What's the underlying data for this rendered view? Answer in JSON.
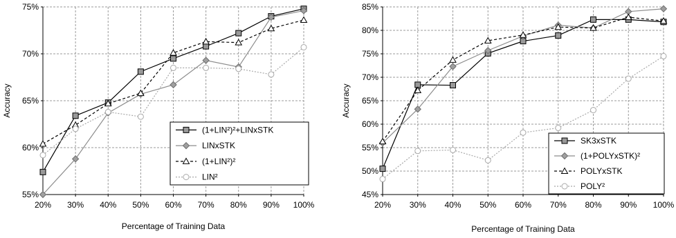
{
  "chart_data": [
    {
      "type": "line",
      "xlabel": "Percentage of Training Data",
      "ylabel": "Accuracy",
      "categories": [
        "20%",
        "30%",
        "40%",
        "50%",
        "60%",
        "70%",
        "80%",
        "90%",
        "100%"
      ],
      "ylim": [
        55,
        75
      ],
      "yticks": [
        55,
        60,
        65,
        70,
        75
      ],
      "ytick_labels": [
        "55%",
        "60%",
        "65%",
        "70%",
        "75%"
      ],
      "grid": true,
      "legend_position": "lower-right",
      "series": [
        {
          "name": "(1+LIN²)²+LINxSTK",
          "marker": "square",
          "line": "solid",
          "color": "#000000",
          "fill": "#999999",
          "values": [
            57.4,
            63.4,
            64.8,
            68.1,
            69.5,
            70.8,
            72.2,
            74.0,
            74.8
          ]
        },
        {
          "name": "LINxSTK",
          "marker": "diamond",
          "line": "solid",
          "color": "#8c8c8c",
          "fill": "#a0a0a0",
          "values": [
            55.0,
            58.8,
            63.7,
            65.7,
            66.7,
            69.3,
            68.6,
            73.9,
            74.6
          ]
        },
        {
          "name": "(1+LIN²)²",
          "marker": "triangle",
          "line": "dashed",
          "color": "#000000",
          "fill": "#ffffff",
          "values": [
            60.4,
            62.4,
            64.7,
            65.8,
            70.1,
            71.3,
            71.2,
            72.7,
            73.6
          ]
        },
        {
          "name": "LIN²",
          "marker": "circle",
          "line": "dotted",
          "color": "#a8a8a8",
          "fill": "#ffffff",
          "values": [
            59.2,
            62.0,
            63.8,
            63.3,
            68.5,
            68.5,
            68.4,
            67.8,
            70.7
          ]
        }
      ]
    },
    {
      "type": "line",
      "xlabel": "Percentage of Training Data",
      "ylabel": "Accuracy",
      "categories": [
        "20%",
        "30%",
        "40%",
        "50%",
        "60%",
        "70%",
        "80%",
        "90%",
        "100%"
      ],
      "ylim": [
        45,
        85
      ],
      "yticks": [
        45,
        50,
        55,
        60,
        65,
        70,
        75,
        80,
        85
      ],
      "ytick_labels": [
        "45%",
        "50%",
        "55%",
        "60%",
        "65%",
        "70%",
        "75%",
        "80%",
        "85%"
      ],
      "grid": true,
      "legend_position": "lower-right",
      "series": [
        {
          "name": "SK3xSTK",
          "marker": "square",
          "line": "solid",
          "color": "#000000",
          "fill": "#999999",
          "values": [
            50.5,
            68.4,
            68.3,
            75.1,
            77.7,
            78.9,
            82.3,
            82.3,
            81.8
          ]
        },
        {
          "name": "(1+POLYxSTK)²",
          "marker": "diamond",
          "line": "solid",
          "color": "#8c8c8c",
          "fill": "#a0a0a0",
          "values": [
            56.0,
            63.2,
            72.3,
            75.7,
            78.8,
            81.1,
            80.5,
            84.0,
            84.6
          ]
        },
        {
          "name": "POLYxSTK",
          "marker": "triangle",
          "line": "dashed",
          "color": "#000000",
          "fill": "#ffffff",
          "values": [
            56.3,
            67.2,
            73.7,
            77.8,
            79.0,
            80.7,
            80.5,
            82.8,
            82.0
          ]
        },
        {
          "name": "POLY²",
          "marker": "circle",
          "line": "dotted",
          "color": "#a8a8a8",
          "fill": "#ffffff",
          "values": [
            48.3,
            54.3,
            54.5,
            52.3,
            58.2,
            59.2,
            63.0,
            69.7,
            74.5
          ]
        }
      ]
    }
  ]
}
